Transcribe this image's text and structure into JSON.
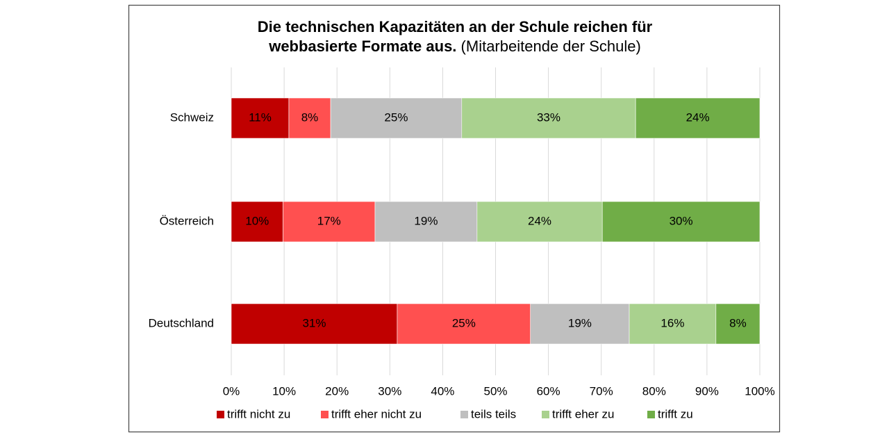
{
  "chart_data": {
    "type": "stacked_bar_horizontal",
    "title": [
      "Die technischen Kapazitäten an der Schule reichen für",
      "webbasierte Formate aus."
    ],
    "subtitle": "(Mitarbeitende der Schule)",
    "categories": [
      "Schweiz",
      "Österreich",
      "Deutschland"
    ],
    "series": [
      {
        "name": "trifft nicht zu",
        "color": "#c00000",
        "values": [
          10.9,
          9.8,
          31.4
        ],
        "value_labels": [
          "11%",
          "10%",
          "31%"
        ]
      },
      {
        "name": "trifft eher nicht zu",
        "color": "#ff5050",
        "values": [
          7.9,
          17.4,
          25.2
        ],
        "value_labels": [
          "8%",
          "17%",
          "25%"
        ]
      },
      {
        "name": "teils teils",
        "color": "#bfbfbf",
        "values": [
          24.8,
          19.3,
          18.7
        ],
        "value_labels": [
          "25%",
          "19%",
          "19%"
        ]
      },
      {
        "name": "trifft eher zu",
        "color": "#a9d18e",
        "values": [
          32.9,
          23.7,
          16.4
        ],
        "value_labels": [
          "33%",
          "24%",
          "16%"
        ]
      },
      {
        "name": "trifft zu",
        "color": "#70ad47",
        "values": [
          23.5,
          29.8,
          8.3
        ],
        "value_labels": [
          "24%",
          "30%",
          "8%"
        ]
      }
    ],
    "xlim": [
      0,
      100
    ],
    "xticks": [
      {
        "value": 0,
        "label": "0%"
      },
      {
        "value": 10,
        "label": "10%"
      },
      {
        "value": 20,
        "label": "20%"
      },
      {
        "value": 30,
        "label": "30%"
      },
      {
        "value": 40,
        "label": "40%"
      },
      {
        "value": 50,
        "label": "50%"
      },
      {
        "value": 60,
        "label": "60%"
      },
      {
        "value": 70,
        "label": "70%"
      },
      {
        "value": 80,
        "label": "80%"
      },
      {
        "value": 90,
        "label": "90%"
      },
      {
        "value": 100,
        "label": "100%"
      }
    ],
    "grid": true,
    "legend": "bottom"
  }
}
